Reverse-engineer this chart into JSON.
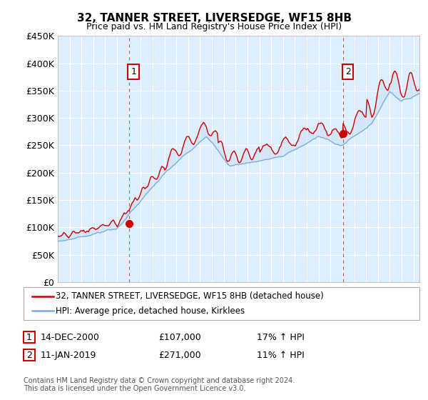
{
  "title": "32, TANNER STREET, LIVERSEDGE, WF15 8HB",
  "subtitle": "Price paid vs. HM Land Registry's House Price Index (HPI)",
  "ylim": [
    0,
    450000
  ],
  "xlim_start": 1995.0,
  "xlim_end": 2025.5,
  "legend_line1": "32, TANNER STREET, LIVERSEDGE, WF15 8HB (detached house)",
  "legend_line2": "HPI: Average price, detached house, Kirklees",
  "table_row1": [
    "1",
    "14-DEC-2000",
    "£107,000",
    "17% ↑ HPI"
  ],
  "table_row2": [
    "2",
    "11-JAN-2019",
    "£271,000",
    "11% ↑ HPI"
  ],
  "footnote": "Contains HM Land Registry data © Crown copyright and database right 2024.\nThis data is licensed under the Open Government Licence v3.0.",
  "marker1_x": 2001.0,
  "marker1_y": 107000,
  "marker2_x": 2019.08,
  "marker2_y": 271000,
  "sale_color": "#cc0000",
  "hpi_color": "#7aaddb",
  "vline_color": "#cc0000",
  "plot_bg_color": "#ddeeff",
  "background_color": "#ffffff",
  "grid_color": "#ffffff"
}
